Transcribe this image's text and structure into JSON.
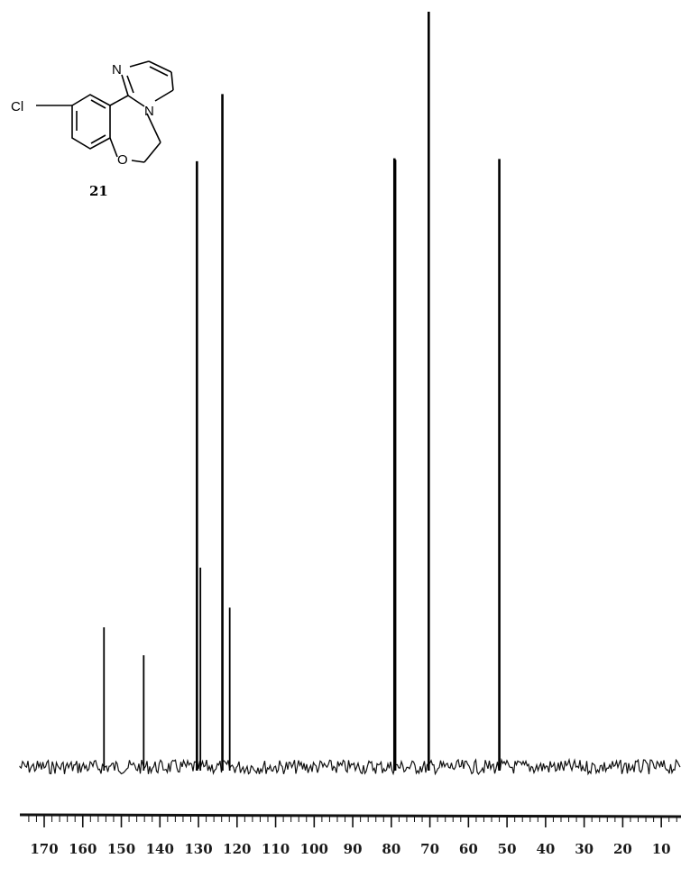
{
  "chart_data": {
    "type": "line",
    "title": "",
    "xlabel": "",
    "ylabel": "",
    "x_reversed": true,
    "xlim": [
      175,
      5
    ],
    "ylim": [
      0,
      1
    ],
    "grid": false,
    "legend": "none",
    "ticks": [
      "170",
      "160",
      "150",
      "140",
      "130",
      "120",
      "110",
      "100",
      "90",
      "80",
      "70",
      "60",
      "50",
      "40",
      "30",
      "20",
      "10"
    ],
    "peaks": [
      {
        "shift": 154.5,
        "height": 0.185
      },
      {
        "shift": 144.2,
        "height": 0.148
      },
      {
        "shift": 130.4,
        "height": 0.802
      },
      {
        "shift": 129.5,
        "height": 0.264
      },
      {
        "shift": 123.8,
        "height": 0.891
      },
      {
        "shift": 121.9,
        "height": 0.211
      },
      {
        "shift": 79.2,
        "height": 0.806
      },
      {
        "shift": 79.0,
        "height": 0.804
      },
      {
        "shift": 70.3,
        "height": 1.0
      },
      {
        "shift": 52.0,
        "height": 0.805
      }
    ]
  },
  "structure": {
    "atoms": {
      "chlorine": "Cl",
      "nitrogen_1": "N",
      "nitrogen_2": "N",
      "oxygen": "O"
    },
    "compound_number": "21"
  }
}
